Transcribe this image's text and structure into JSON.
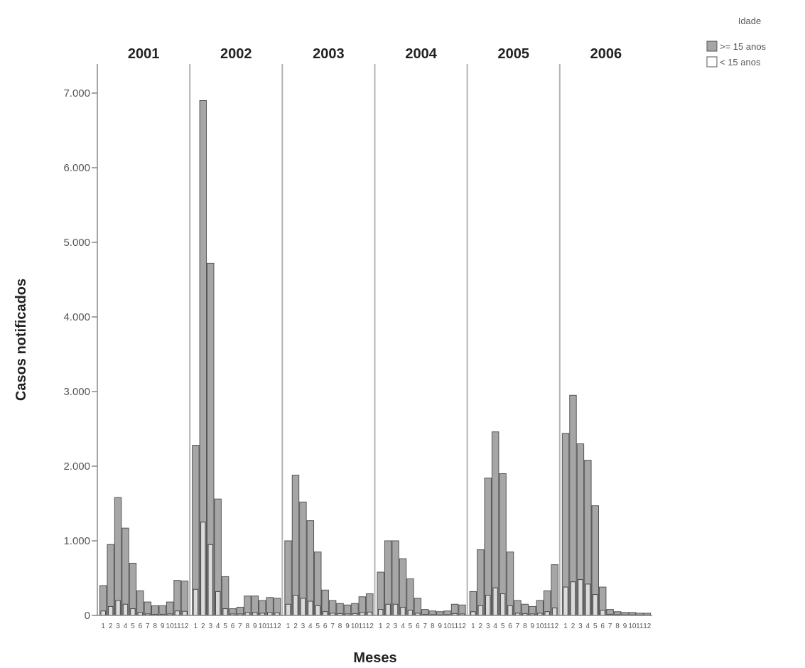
{
  "chart_data": {
    "type": "bar",
    "title": "",
    "xlabel": "Meses",
    "ylabel": "Casos notificados",
    "ylim": [
      0,
      7200
    ],
    "yticks": [
      {
        "value": 0,
        "label": "0"
      },
      {
        "value": 1000,
        "label": "1.000"
      },
      {
        "value": 2000,
        "label": "2.000"
      },
      {
        "value": 3000,
        "label": "3.000"
      },
      {
        "value": 4000,
        "label": "4.000"
      },
      {
        "value": 5000,
        "label": "5.000"
      },
      {
        "value": 6000,
        "label": "6.000"
      },
      {
        "value": 7000,
        "label": "7.000"
      }
    ],
    "grid": false,
    "stacked": false,
    "legend": {
      "title": "Idade",
      "position": "top-right",
      "entries": [
        {
          "name": ">= 15 anos",
          "color": "#a6a6a6"
        },
        {
          "name": "< 15 anos",
          "color": "#ffffff"
        }
      ]
    },
    "panels": [
      {
        "year": "2001",
        "months": [
          "1",
          "2",
          "3",
          "4",
          "5",
          "6",
          "7",
          "8",
          "9",
          "10",
          "11",
          "12"
        ],
        "series": [
          {
            "name": ">= 15 anos",
            "values": [
              400,
              950,
              1580,
              1170,
              700,
              330,
              180,
              130,
              130,
              180,
              470,
              460
            ]
          },
          {
            "name": "< 15 anos",
            "values": [
              60,
              120,
              200,
              150,
              90,
              40,
              20,
              15,
              15,
              20,
              60,
              55
            ]
          }
        ]
      },
      {
        "year": "2002",
        "months": [
          "1",
          "2",
          "3",
          "4",
          "5",
          "6",
          "7",
          "8",
          "9",
          "10",
          "11",
          "12"
        ],
        "series": [
          {
            "name": ">= 15 anos",
            "values": [
              2280,
              6900,
              4720,
              1560,
              520,
              90,
              110,
              260,
              260,
              200,
              240,
              230
            ]
          },
          {
            "name": "< 15 anos",
            "values": [
              350,
              1250,
              950,
              320,
              90,
              20,
              20,
              40,
              40,
              30,
              40,
              35
            ]
          }
        ]
      },
      {
        "year": "2003",
        "months": [
          "1",
          "2",
          "3",
          "4",
          "5",
          "6",
          "7",
          "8",
          "9",
          "10",
          "11",
          "12"
        ],
        "series": [
          {
            "name": ">= 15 anos",
            "values": [
              1000,
              1880,
              1520,
              1270,
              850,
              340,
              200,
              160,
              140,
              160,
              250,
              290
            ]
          },
          {
            "name": "< 15 anos",
            "values": [
              150,
              270,
              230,
              190,
              130,
              50,
              30,
              25,
              20,
              25,
              40,
              45
            ]
          }
        ]
      },
      {
        "year": "2004",
        "months": [
          "1",
          "2",
          "3",
          "4",
          "5",
          "6",
          "7",
          "8",
          "9",
          "10",
          "11",
          "12"
        ],
        "series": [
          {
            "name": ">= 15 anos",
            "values": [
              580,
              1000,
              1000,
              760,
              490,
              230,
              80,
              60,
              50,
              60,
              150,
              140
            ]
          },
          {
            "name": "< 15 anos",
            "values": [
              80,
              150,
              150,
              110,
              70,
              30,
              12,
              10,
              8,
              10,
              25,
              20
            ]
          }
        ]
      },
      {
        "year": "2005",
        "months": [
          "1",
          "2",
          "3",
          "4",
          "5",
          "6",
          "7",
          "8",
          "9",
          "10",
          "11",
          "12"
        ],
        "series": [
          {
            "name": ">= 15 anos",
            "values": [
              320,
              880,
              1840,
              2460,
              1900,
              850,
              200,
              150,
              120,
              200,
              330,
              680
            ]
          },
          {
            "name": "< 15 anos",
            "values": [
              50,
              130,
              270,
              370,
              290,
              130,
              30,
              25,
              20,
              30,
              50,
              100
            ]
          }
        ]
      },
      {
        "year": "2006",
        "months": [
          "1",
          "2",
          "3",
          "4",
          "5",
          "6",
          "7",
          "8",
          "9",
          "10",
          "11",
          "12"
        ],
        "series": [
          {
            "name": ">= 15 anos",
            "values": [
              2440,
              2950,
              2300,
              2080,
              1470,
              380,
              80,
              50,
              40,
              40,
              30,
              30
            ]
          },
          {
            "name": "< 15 anos",
            "values": [
              380,
              450,
              480,
              420,
              280,
              70,
              15,
              10,
              8,
              8,
              6,
              6
            ]
          }
        ]
      }
    ]
  }
}
